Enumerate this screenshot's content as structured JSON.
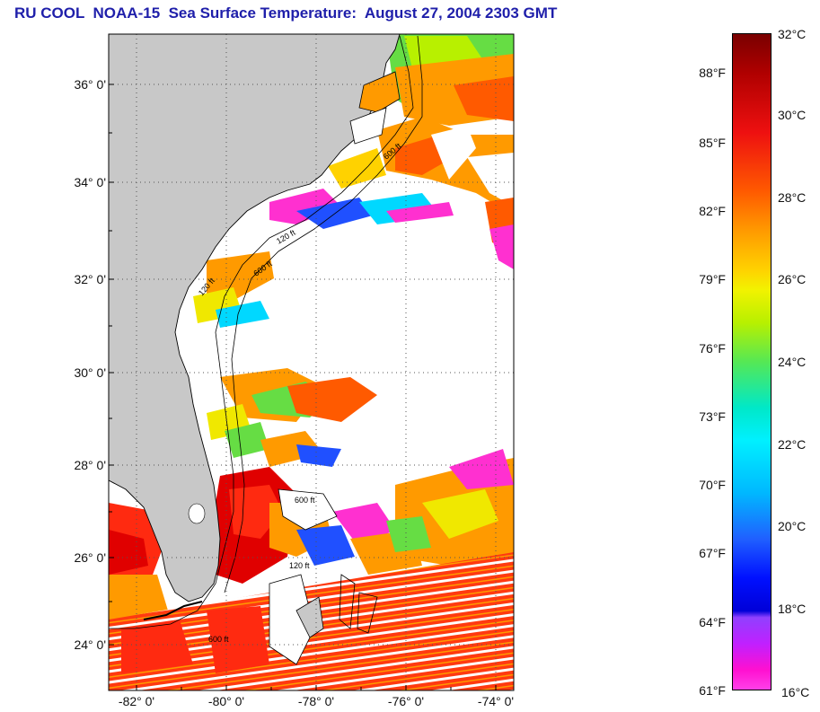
{
  "title": "RU COOL  NOAA-15  Sea Surface Temperature:  August 27, 2004 2303 GMT",
  "map": {
    "lat_labels": [
      "36° 0'",
      "34° 0'",
      "32° 0'",
      "30° 0'",
      "28° 0'",
      "26° 0'",
      "24° 0'"
    ],
    "lon_labels": [
      "-82° 0'",
      "-80° 0'",
      "-78° 0'",
      "-76° 0'",
      "-74° 0'"
    ],
    "isobath_labels": [
      "600 ft",
      "120 ft",
      "600 ft",
      "120 ft",
      "600 ft",
      "120 ft",
      "600 ft"
    ],
    "colors": {
      "land": "#c8c8c8",
      "cloud": "#ffffff",
      "warm": "#ff2a10",
      "hot": "#e00000",
      "orange": "#ff9a00",
      "yellow": "#f0e800",
      "green": "#66dd44",
      "cyan": "#00d8ff",
      "blue": "#2050ff",
      "magenta": "#ff30d0"
    }
  },
  "colorbar": {
    "fahrenheit_labels": [
      "88°F",
      "85°F",
      "82°F",
      "79°F",
      "76°F",
      "73°F",
      "70°F",
      "67°F",
      "64°F",
      "61°F"
    ],
    "celsius_labels": [
      "32°C",
      "30°C",
      "28°C",
      "26°C",
      "24°C",
      "22°C",
      "20°C",
      "18°C",
      "16°C"
    ]
  }
}
